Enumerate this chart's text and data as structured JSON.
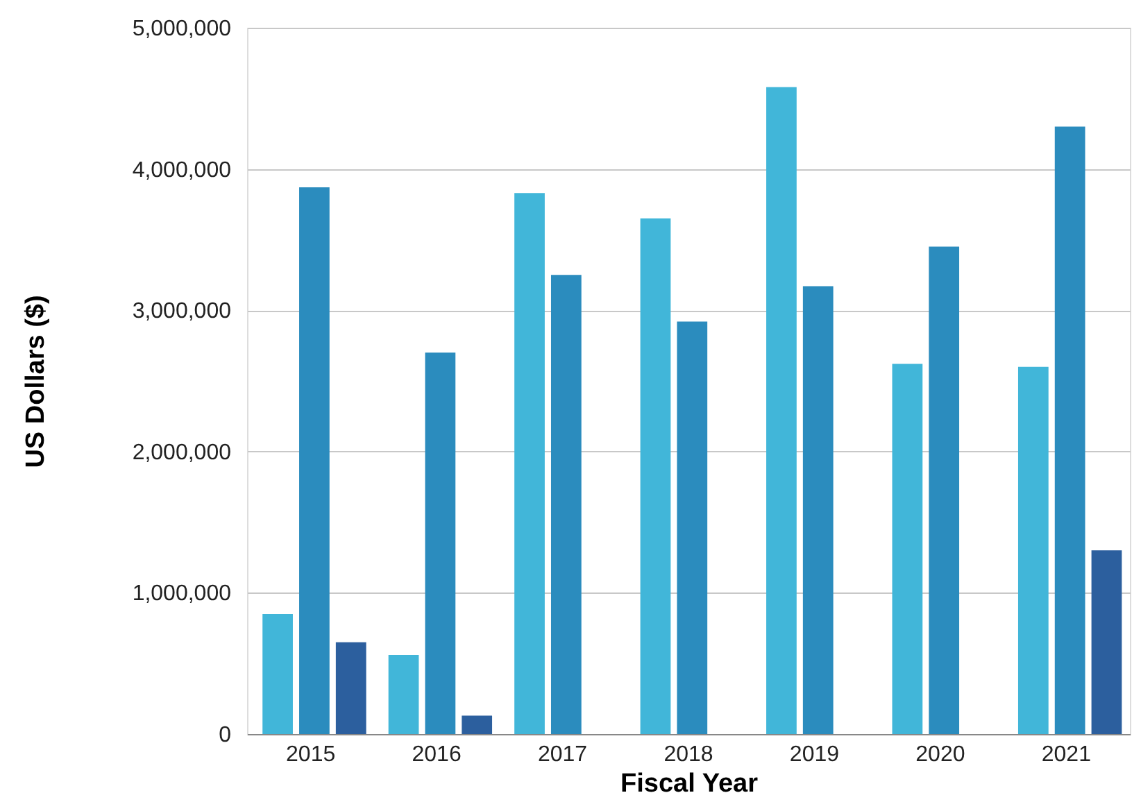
{
  "chart_data": {
    "type": "bar",
    "xlabel": "Fiscal Year",
    "ylabel": "US Dollars ($)",
    "categories": [
      "2015",
      "2016",
      "2017",
      "2018",
      "2019",
      "2020",
      "2021"
    ],
    "series": [
      {
        "color": "#41b6d9",
        "values": [
          850000,
          560000,
          3830000,
          3650000,
          4580000,
          2620000,
          2600000
        ]
      },
      {
        "color": "#2b8cbe",
        "values": [
          3870000,
          2700000,
          3250000,
          2920000,
          3170000,
          3450000,
          4300000
        ]
      },
      {
        "color": "#2c5f9e",
        "values": [
          650000,
          130000,
          null,
          null,
          null,
          null,
          1300000
        ]
      }
    ],
    "ylim": [
      0,
      5000000
    ],
    "yticks": [
      {
        "value": 0,
        "label": "0"
      },
      {
        "value": 1000000,
        "label": "1,000,000"
      },
      {
        "value": 2000000,
        "label": "2,000,000"
      },
      {
        "value": 3000000,
        "label": "3,000,000"
      },
      {
        "value": 4000000,
        "label": "4,000,000"
      },
      {
        "value": 5000000,
        "label": "5,000,000"
      }
    ],
    "grid": "y",
    "legend": false
  }
}
